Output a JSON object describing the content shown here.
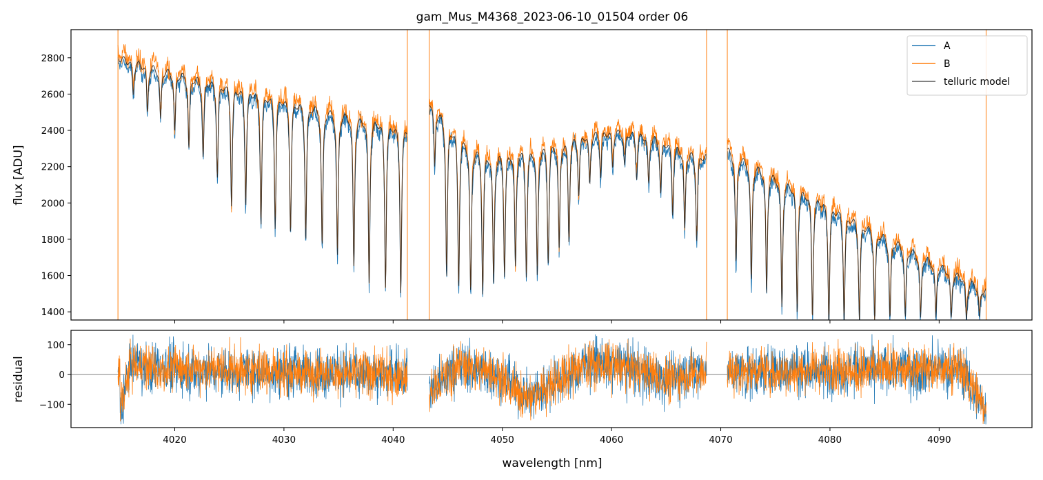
{
  "figure": {
    "title": "gam_Mus_M4368_2023-06-10_01504  order 06"
  },
  "chart_data": [
    {
      "type": "line",
      "panel": "flux",
      "title": "gam_Mus_M4368_2023-06-10_01504  order 06",
      "xlabel": "",
      "ylabel": "flux [ADU]",
      "xlim": [
        4010.5,
        4098.5
      ],
      "ylim": [
        1355,
        2955
      ],
      "yticks": [
        1400,
        1600,
        1800,
        2000,
        2200,
        2400,
        2600,
        2800
      ],
      "xticks": [
        4020,
        4030,
        4040,
        4050,
        4060,
        4070,
        4080,
        4090
      ],
      "x_tick_labels_shown": false,
      "grid": false,
      "legend": {
        "placement": "top-right",
        "entries": [
          "A",
          "B",
          "telluric model"
        ]
      },
      "segments": [
        {
          "x_start": 4014.8,
          "x_end": 4041.3,
          "continuum_start": 2800,
          "continuum_end": 2420,
          "line_centers": [
            4016.2,
            4017.5,
            4018.7,
            4020.0,
            4021.3,
            4022.6,
            4023.9,
            4025.2,
            4026.5,
            4027.9,
            4029.2,
            4030.6,
            4032.0,
            4033.5,
            4034.9,
            4036.4,
            4037.8,
            4039.3,
            4040.7
          ],
          "line_minima": [
            2600,
            2500,
            2450,
            2380,
            2300,
            2250,
            2150,
            2000,
            2000,
            1900,
            1880,
            1850,
            1800,
            1750,
            1700,
            1650,
            1570,
            1560,
            1520
          ]
        },
        {
          "x_start": 4043.3,
          "x_end": 4068.7,
          "continuum_start": 2580,
          "continuum_end": 2240,
          "line_centers": [
            4043.8,
            4044.9,
            4046.0,
            4047.1,
            4048.2,
            4049.2,
            4050.2,
            4051.2,
            4052.2,
            4053.2,
            4054.2,
            4055.2,
            4056.1,
            4057.0,
            4058.0,
            4059.0,
            4060.1,
            4061.2,
            4062.3,
            4063.4,
            4064.5,
            4065.6,
            4066.7,
            4067.8
          ],
          "line_minima": [
            2200,
            1600,
            1550,
            1500,
            1520,
            1560,
            1620,
            1650,
            1620,
            1600,
            1700,
            1750,
            1800,
            2050,
            2100,
            2150,
            2200,
            2200,
            2150,
            2100,
            2050,
            1950,
            1850,
            1800
          ]
        },
        {
          "x_start": 4070.6,
          "x_end": 4094.3,
          "continuum_start": 2300,
          "continuum_end": 1520,
          "line_centers": [
            4071.4,
            4072.8,
            4074.2,
            4075.6,
            4077.0,
            4078.4,
            4079.9,
            4081.3,
            4082.7,
            4084.1,
            4085.5,
            4086.9,
            4088.3,
            4089.7,
            4091.1,
            4092.5,
            4093.7
          ],
          "line_minima": [
            1650,
            1560,
            1500,
            1430,
            1400,
            1380,
            1355,
            1355,
            1355,
            1355,
            1355,
            1355,
            1355,
            1355,
            1355,
            1355,
            1355
          ]
        }
      ],
      "series": [
        {
          "name": "A",
          "color": "#1f77b4"
        },
        {
          "name": "B",
          "color": "#ff7f0e"
        },
        {
          "name": "telluric model",
          "color": "#595959"
        }
      ]
    },
    {
      "type": "line",
      "panel": "residual",
      "xlabel": "wavelength [nm]",
      "ylabel": "residual",
      "xlim": [
        4010.5,
        4098.5
      ],
      "ylim": [
        -178,
        148
      ],
      "yticks": [
        -100,
        0,
        100
      ],
      "xticks": [
        4020,
        4030,
        4040,
        4050,
        4060,
        4070,
        4080,
        4090
      ],
      "xtick_labels": [
        "4020",
        "4030",
        "4040",
        "4050",
        "4060",
        "4070",
        "4080",
        "4090"
      ],
      "zero_line": 0,
      "grid": false,
      "series": [
        {
          "name": "A",
          "color": "#1f77b4",
          "noise_amplitude": 60
        },
        {
          "name": "B",
          "color": "#ff7f0e",
          "noise_amplitude": 55
        }
      ],
      "trend_points": [
        {
          "x": 4015.0,
          "y": -120
        },
        {
          "x": 4016.0,
          "y": 40
        },
        {
          "x": 4018.0,
          "y": 20
        },
        {
          "x": 4041.3,
          "y": 0
        },
        {
          "x": 4043.3,
          "y": -60
        },
        {
          "x": 4046.0,
          "y": 30
        },
        {
          "x": 4049.0,
          "y": 10
        },
        {
          "x": 4052.5,
          "y": -80
        },
        {
          "x": 4055.0,
          "y": -20
        },
        {
          "x": 4058.0,
          "y": 40
        },
        {
          "x": 4062.0,
          "y": 20
        },
        {
          "x": 4065.0,
          "y": -20
        },
        {
          "x": 4068.7,
          "y": 20
        },
        {
          "x": 4070.6,
          "y": 10
        },
        {
          "x": 4092.0,
          "y": 20
        },
        {
          "x": 4094.3,
          "y": -120
        }
      ]
    }
  ]
}
